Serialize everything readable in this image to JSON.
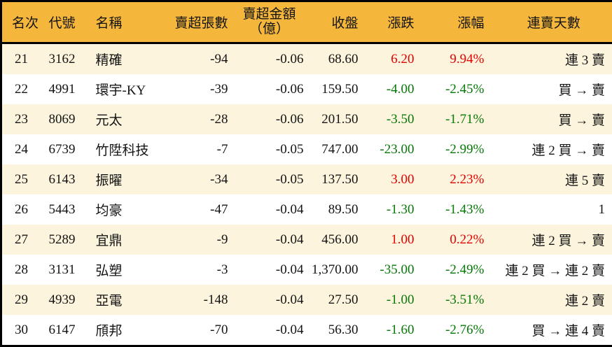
{
  "colors": {
    "header_bg": "#F5B63C",
    "row_alt_bg": "#FCF4DC",
    "row_bg": "#FFFFFF",
    "border": "#000000",
    "text": "#141414",
    "up": "#E60000",
    "down": "#067806"
  },
  "chart_data": {
    "type": "table",
    "columns": [
      {
        "key": "rank",
        "label": "名次"
      },
      {
        "key": "code",
        "label": "代號"
      },
      {
        "key": "name",
        "label": "名稱"
      },
      {
        "key": "sell_volume",
        "label": "賣超張數"
      },
      {
        "key": "sell_amount",
        "label": "賣超金額",
        "sublabel": "（億）"
      },
      {
        "key": "close",
        "label": "收盤"
      },
      {
        "key": "change",
        "label": "漲跌"
      },
      {
        "key": "change_pct",
        "label": "漲幅"
      },
      {
        "key": "streak",
        "label": "連賣天數"
      }
    ],
    "rows": [
      {
        "rank": "21",
        "code": "3162",
        "name": "精確",
        "sell_volume": "-94",
        "sell_amount": "-0.06",
        "close": "68.60",
        "change": "6.20",
        "change_pct": "9.94%",
        "trend": "up",
        "streak": "連 3 賣"
      },
      {
        "rank": "22",
        "code": "4991",
        "name": "環宇-KY",
        "sell_volume": "-39",
        "sell_amount": "-0.06",
        "close": "159.50",
        "change": "-4.00",
        "change_pct": "-2.45%",
        "trend": "down",
        "streak": "買 → 賣"
      },
      {
        "rank": "23",
        "code": "8069",
        "name": "元太",
        "sell_volume": "-28",
        "sell_amount": "-0.06",
        "close": "201.50",
        "change": "-3.50",
        "change_pct": "-1.71%",
        "trend": "down",
        "streak": "買 → 賣"
      },
      {
        "rank": "24",
        "code": "6739",
        "name": "竹陞科技",
        "sell_volume": "-7",
        "sell_amount": "-0.05",
        "close": "747.00",
        "change": "-23.00",
        "change_pct": "-2.99%",
        "trend": "down",
        "streak": "連 2 買 → 賣"
      },
      {
        "rank": "25",
        "code": "6143",
        "name": "振曜",
        "sell_volume": "-34",
        "sell_amount": "-0.05",
        "close": "137.50",
        "change": "3.00",
        "change_pct": "2.23%",
        "trend": "up",
        "streak": "連 5 賣"
      },
      {
        "rank": "26",
        "code": "5443",
        "name": "均豪",
        "sell_volume": "-47",
        "sell_amount": "-0.04",
        "close": "89.50",
        "change": "-1.30",
        "change_pct": "-1.43%",
        "trend": "down",
        "streak": "1"
      },
      {
        "rank": "27",
        "code": "5289",
        "name": "宜鼎",
        "sell_volume": "-9",
        "sell_amount": "-0.04",
        "close": "456.00",
        "change": "1.00",
        "change_pct": "0.22%",
        "trend": "up",
        "streak": "連 2 買 → 賣"
      },
      {
        "rank": "28",
        "code": "3131",
        "name": "弘塑",
        "sell_volume": "-3",
        "sell_amount": "-0.04",
        "close": "1,370.00",
        "change": "-35.00",
        "change_pct": "-2.49%",
        "trend": "down",
        "streak": "連 2 買 → 連 2 賣"
      },
      {
        "rank": "29",
        "code": "4939",
        "name": "亞電",
        "sell_volume": "-148",
        "sell_amount": "-0.04",
        "close": "27.50",
        "change": "-1.00",
        "change_pct": "-3.51%",
        "trend": "down",
        "streak": "連 2 賣"
      },
      {
        "rank": "30",
        "code": "6147",
        "name": "頎邦",
        "sell_volume": "-70",
        "sell_amount": "-0.04",
        "close": "56.30",
        "change": "-1.60",
        "change_pct": "-2.76%",
        "trend": "down",
        "streak": "買 → 連 4 賣"
      }
    ]
  }
}
